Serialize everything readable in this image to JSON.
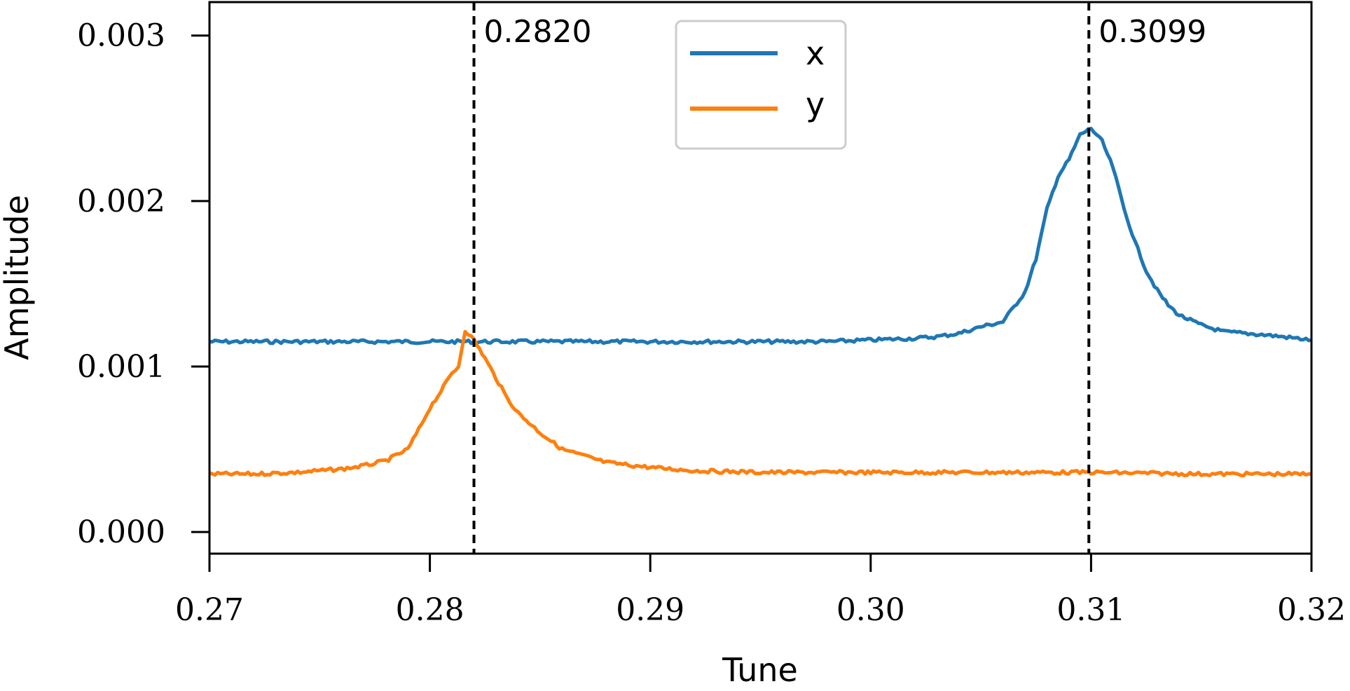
{
  "chart_data": {
    "type": "line",
    "title": "",
    "xlabel": "Tune",
    "ylabel": "Amplitude",
    "xlim": [
      0.27,
      0.32
    ],
    "ylim": [
      -0.000131,
      0.003202
    ],
    "xticks": [
      0.27,
      0.28,
      0.29,
      0.3,
      0.31,
      0.32
    ],
    "xtick_labels": [
      "0.27",
      "0.28",
      "0.29",
      "0.30",
      "0.31",
      "0.32"
    ],
    "yticks": [
      0.0,
      0.001,
      0.002,
      0.003
    ],
    "ytick_labels": [
      "0.000",
      "0.001",
      "0.002",
      "0.003"
    ],
    "grid": false,
    "legend": "top-center",
    "vlines": [
      {
        "x": 0.282,
        "label": "0.2820"
      },
      {
        "x": 0.3099,
        "label": "0.3099"
      }
    ],
    "series": [
      {
        "name": "x",
        "color": "#1f77b4",
        "x": [
          0.27,
          0.272,
          0.274,
          0.276,
          0.278,
          0.28,
          0.282,
          0.284,
          0.286,
          0.288,
          0.29,
          0.292,
          0.294,
          0.296,
          0.298,
          0.3,
          0.302,
          0.303,
          0.304,
          0.305,
          0.306,
          0.307,
          0.3075,
          0.308,
          0.3085,
          0.309,
          0.3095,
          0.31,
          0.3105,
          0.311,
          0.3115,
          0.312,
          0.3125,
          0.313,
          0.3135,
          0.314,
          0.315,
          0.316,
          0.318,
          0.32
        ],
        "y": [
          0.00115,
          0.00115,
          0.00115,
          0.00115,
          0.00115,
          0.00115,
          0.00115,
          0.00115,
          0.00115,
          0.00115,
          0.00115,
          0.00115,
          0.00115,
          0.00115,
          0.00115,
          0.00116,
          0.00117,
          0.00118,
          0.0012,
          0.00124,
          0.00127,
          0.00145,
          0.00165,
          0.00195,
          0.00215,
          0.00225,
          0.0024,
          0.00244,
          0.00236,
          0.0022,
          0.00195,
          0.00175,
          0.00158,
          0.00146,
          0.00137,
          0.00131,
          0.00125,
          0.00121,
          0.00119,
          0.00116
        ]
      },
      {
        "name": "y",
        "color": "#ff7f0e",
        "x": [
          0.27,
          0.272,
          0.274,
          0.276,
          0.277,
          0.278,
          0.279,
          0.2795,
          0.28,
          0.2805,
          0.281,
          0.2813,
          0.2816,
          0.282,
          0.2825,
          0.283,
          0.2835,
          0.284,
          0.285,
          0.286,
          0.287,
          0.288,
          0.29,
          0.292,
          0.295,
          0.3,
          0.305,
          0.31,
          0.315,
          0.32
        ],
        "y": [
          0.00035,
          0.00035,
          0.00036,
          0.00038,
          0.0004,
          0.00043,
          0.0005,
          0.00062,
          0.00075,
          0.00085,
          0.00096,
          0.001,
          0.00122,
          0.00116,
          0.00105,
          0.00093,
          0.00081,
          0.00072,
          0.0006,
          0.0005,
          0.00046,
          0.00042,
          0.00039,
          0.00037,
          0.00036,
          0.00036,
          0.00036,
          0.00036,
          0.00035,
          0.00035
        ]
      }
    ]
  }
}
